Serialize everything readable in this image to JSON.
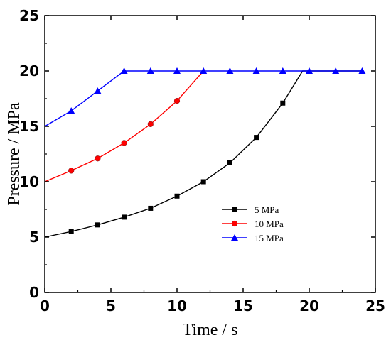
{
  "chart_data": {
    "type": "line",
    "title": "",
    "xlabel": "Time / s",
    "ylabel": "Pressure  / MPa",
    "xlim": [
      0,
      25
    ],
    "ylim": [
      0,
      25
    ],
    "xticks": [
      "0",
      "5",
      "10",
      "15",
      "20",
      "25"
    ],
    "yticks": [
      "0",
      "5",
      "10",
      "15",
      "20",
      "25"
    ],
    "grid": false,
    "legend": "center-right",
    "series": [
      {
        "name": "5 MPa",
        "color": "#000000",
        "marker": "square",
        "x": [
          0,
          2,
          4,
          6,
          8,
          10,
          12,
          14,
          16,
          18,
          19.5,
          20,
          22,
          24
        ],
        "y": [
          5.0,
          5.5,
          6.1,
          6.8,
          7.6,
          8.7,
          10.0,
          11.7,
          14.0,
          17.1,
          20.0,
          20.0,
          20.0,
          20.0
        ],
        "marked": [
          false,
          true,
          true,
          true,
          true,
          true,
          true,
          true,
          true,
          true,
          false,
          false,
          false,
          false
        ]
      },
      {
        "name": "10 MPa",
        "color": "#ff0000",
        "marker": "circle",
        "x": [
          0,
          2,
          4,
          6,
          8,
          10,
          12
        ],
        "y": [
          10.0,
          11.0,
          12.1,
          13.5,
          15.2,
          17.3,
          20.0
        ],
        "marked": [
          false,
          true,
          true,
          true,
          true,
          true,
          false
        ]
      },
      {
        "name": "15 MPa",
        "color": "#0000ff",
        "marker": "triangle",
        "x": [
          0,
          2,
          4,
          6,
          8,
          10,
          12,
          14,
          16,
          18,
          20,
          22,
          24
        ],
        "y": [
          15.0,
          16.4,
          18.2,
          20.0,
          20.0,
          20.0,
          20.0,
          20.0,
          20.0,
          20.0,
          20.0,
          20.0,
          20.0
        ],
        "marked": [
          false,
          true,
          true,
          true,
          true,
          true,
          true,
          true,
          true,
          true,
          true,
          true,
          true
        ]
      }
    ]
  }
}
